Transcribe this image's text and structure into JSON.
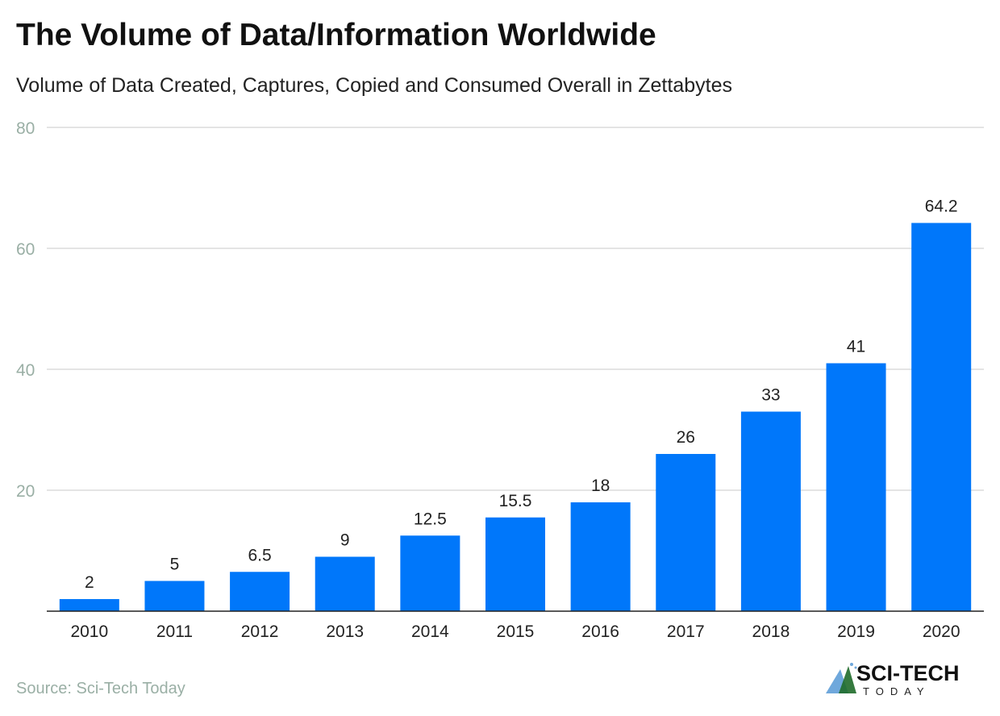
{
  "chart_data": {
    "type": "bar",
    "title": "The Volume of Data/Information Worldwide",
    "subtitle": "Volume of Data Created, Captures, Copied and Consumed Overall in Zettabytes",
    "categories": [
      "2010",
      "2011",
      "2012",
      "2013",
      "2014",
      "2015",
      "2016",
      "2017",
      "2018",
      "2019",
      "2020"
    ],
    "values": [
      2,
      5,
      6.5,
      9,
      12.5,
      15.5,
      18,
      26,
      33,
      41,
      64.2
    ],
    "data_labels": [
      "2",
      "5",
      "6.5",
      "9",
      "12.5",
      "15.5",
      "18",
      "26",
      "33",
      "41",
      "64.2"
    ],
    "xlabel": "",
    "ylabel": "",
    "ylim": [
      0,
      80
    ],
    "yticks": [
      "20",
      "40",
      "60",
      "80"
    ],
    "grid": true,
    "bar_color": "#0077fa"
  },
  "source": "Source: Sci-Tech Today",
  "logo": {
    "text": "SCI-TECH",
    "subtext": "TODAY"
  }
}
